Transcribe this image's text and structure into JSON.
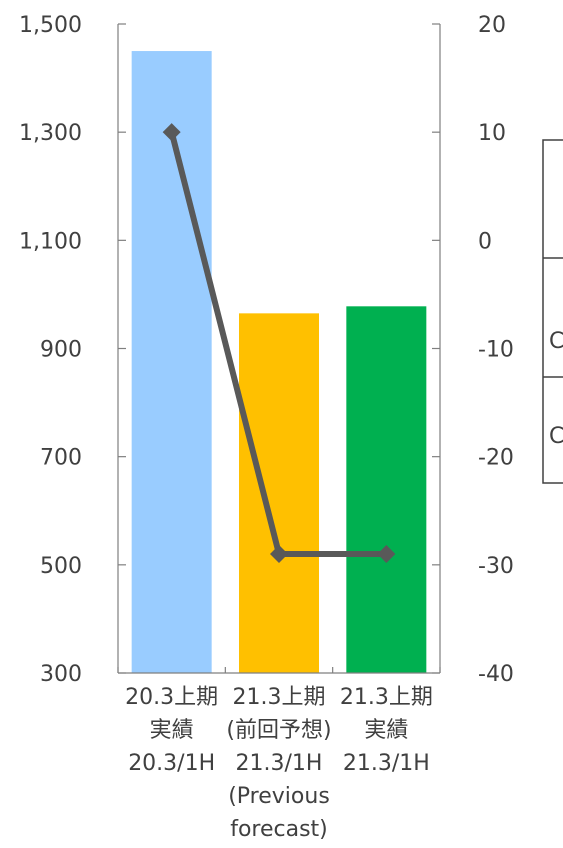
{
  "chart_data": {
    "type": "bar",
    "categories": [
      [
        "20.3上期",
        "実績",
        "20.3/1H"
      ],
      [
        "21.3上期",
        "(前回予想)",
        "21.3/1H",
        "(Previous",
        "forecast)"
      ],
      [
        "21.3上期",
        "実績",
        "21.3/1H"
      ]
    ],
    "series": [
      {
        "type": "bar",
        "axis": "left",
        "values": [
          1450,
          965,
          978
        ],
        "colors": [
          "#99ccff",
          "#ffc000",
          "#00b050"
        ]
      },
      {
        "type": "line",
        "axis": "right",
        "values": [
          10,
          -29,
          -29
        ],
        "color": "#595959"
      }
    ],
    "left_axis": {
      "ylim": [
        300,
        1500
      ],
      "ticks": [
        300,
        500,
        700,
        900,
        1100,
        1300,
        1500
      ],
      "tick_labels": [
        "300",
        "500",
        "700",
        "900",
        "1,100",
        "1,300",
        "1,500"
      ]
    },
    "right_axis": {
      "ylim": [
        -40,
        20
      ],
      "ticks": [
        -40,
        -30,
        -20,
        -10,
        0,
        10,
        20
      ],
      "tick_labels": [
        "-40",
        "-30",
        "-20",
        "-10",
        "0",
        "10",
        "20"
      ]
    },
    "legend_fragments": [
      "C",
      "C"
    ],
    "grid": false
  }
}
